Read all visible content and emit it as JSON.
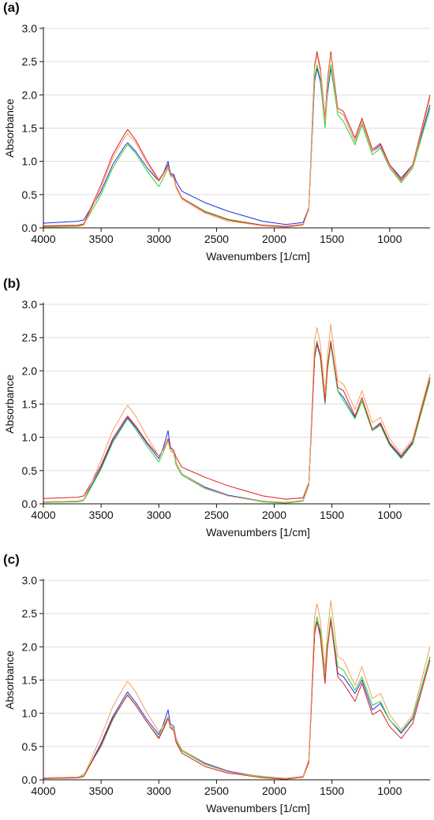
{
  "figure": {
    "panels": [
      "(a)",
      "(b)",
      "(c)"
    ]
  },
  "colors": {
    "blue": "#2030e0",
    "green": "#30d030",
    "red": "#e02020",
    "orange": "#f0a060",
    "grid": "#dddddd",
    "axis": "#111111"
  },
  "chart_data": [
    {
      "type": "line",
      "panel_label": "(a)",
      "xlabel": "Wavenumbers [1/cm]",
      "ylabel": "Absorbance",
      "xlim": [
        4000,
        650
      ],
      "ylim": [
        0.0,
        3.0
      ],
      "x_ticks": [
        4000,
        3500,
        3000,
        2500,
        2000,
        1500,
        1000
      ],
      "y_ticks": [
        "0.0",
        "0.5",
        "1.0",
        "1.5",
        "2.0",
        "2.5",
        "3.0"
      ],
      "grid": "horizontal",
      "x": [
        4000,
        3700,
        3650,
        3500,
        3400,
        3300,
        3270,
        3200,
        3100,
        3000,
        2960,
        2920,
        2900,
        2870,
        2850,
        2800,
        2600,
        2400,
        2300,
        2100,
        1900,
        1750,
        1700,
        1650,
        1630,
        1600,
        1560,
        1540,
        1510,
        1450,
        1400,
        1300,
        1240,
        1150,
        1080,
        1000,
        900,
        800,
        650
      ],
      "series": [
        {
          "color": "blue",
          "values": [
            0.07,
            0.1,
            0.12,
            0.55,
            0.95,
            1.22,
            1.28,
            1.15,
            0.9,
            0.7,
            0.82,
            1.0,
            0.82,
            0.8,
            0.7,
            0.55,
            0.38,
            0.25,
            0.2,
            0.1,
            0.05,
            0.08,
            0.3,
            2.2,
            2.4,
            2.2,
            1.55,
            2.0,
            2.4,
            1.75,
            1.7,
            1.3,
            1.6,
            1.15,
            1.25,
            0.95,
            0.75,
            0.95,
            1.85
          ]
        },
        {
          "color": "green",
          "values": [
            0.02,
            0.03,
            0.05,
            0.5,
            0.9,
            1.18,
            1.25,
            1.12,
            0.85,
            0.62,
            0.75,
            0.9,
            0.78,
            0.75,
            0.6,
            0.45,
            0.25,
            0.13,
            0.1,
            0.04,
            0.02,
            0.05,
            0.28,
            2.25,
            2.45,
            2.25,
            1.5,
            2.05,
            2.45,
            1.7,
            1.6,
            1.25,
            1.55,
            1.1,
            1.2,
            0.9,
            0.68,
            0.9,
            1.8
          ]
        },
        {
          "color": "red",
          "values": [
            0.03,
            0.04,
            0.06,
            0.65,
            1.1,
            1.4,
            1.48,
            1.32,
            1.0,
            0.72,
            0.82,
            0.95,
            0.8,
            0.78,
            0.62,
            0.45,
            0.24,
            0.12,
            0.09,
            0.04,
            0.02,
            0.05,
            0.3,
            2.45,
            2.65,
            2.4,
            1.65,
            2.2,
            2.65,
            1.8,
            1.75,
            1.35,
            1.65,
            1.18,
            1.27,
            0.95,
            0.72,
            0.95,
            2.0
          ]
        },
        {
          "color": "orange",
          "values": [
            0.01,
            0.02,
            0.04,
            0.6,
            1.05,
            1.35,
            1.42,
            1.28,
            0.96,
            0.7,
            0.8,
            0.93,
            0.78,
            0.76,
            0.6,
            0.43,
            0.22,
            0.1,
            0.08,
            0.03,
            0.01,
            0.04,
            0.28,
            2.4,
            2.6,
            2.35,
            1.6,
            2.15,
            2.6,
            1.75,
            1.7,
            1.3,
            1.6,
            1.15,
            1.22,
            0.92,
            0.7,
            0.92,
            1.95
          ]
        }
      ]
    },
    {
      "type": "line",
      "panel_label": "(b)",
      "xlabel": "Wavenumbers [1/cm]",
      "ylabel": "Absorbance",
      "xlim": [
        4000,
        650
      ],
      "ylim": [
        0.0,
        3.0
      ],
      "x_ticks": [
        4000,
        3500,
        3000,
        2500,
        2000,
        1500,
        1000
      ],
      "y_ticks": [
        "0.0",
        "0.5",
        "1.0",
        "1.5",
        "2.0",
        "2.5",
        "3.0"
      ],
      "grid": "horizontal",
      "x": [
        4000,
        3700,
        3650,
        3500,
        3400,
        3300,
        3270,
        3200,
        3100,
        3000,
        2960,
        2920,
        2900,
        2870,
        2850,
        2800,
        2600,
        2400,
        2300,
        2100,
        1900,
        1750,
        1700,
        1650,
        1630,
        1600,
        1560,
        1540,
        1510,
        1450,
        1400,
        1300,
        1240,
        1150,
        1080,
        1000,
        900,
        800,
        650
      ],
      "series": [
        {
          "color": "blue",
          "values": [
            0.03,
            0.04,
            0.06,
            0.55,
            0.95,
            1.22,
            1.3,
            1.15,
            0.9,
            0.68,
            0.85,
            1.1,
            0.85,
            0.8,
            0.62,
            0.45,
            0.25,
            0.13,
            0.1,
            0.04,
            0.02,
            0.05,
            0.3,
            2.2,
            2.4,
            2.2,
            1.5,
            2.0,
            2.4,
            1.7,
            1.6,
            1.3,
            1.55,
            1.1,
            1.2,
            0.9,
            0.7,
            0.92,
            1.85
          ]
        },
        {
          "color": "green",
          "values": [
            0.02,
            0.03,
            0.05,
            0.52,
            0.92,
            1.2,
            1.28,
            1.12,
            0.86,
            0.63,
            0.78,
            0.95,
            0.8,
            0.76,
            0.58,
            0.43,
            0.23,
            0.12,
            0.09,
            0.03,
            0.01,
            0.04,
            0.28,
            2.25,
            2.45,
            2.2,
            1.5,
            2.0,
            2.4,
            1.7,
            1.55,
            1.28,
            1.55,
            1.1,
            1.18,
            0.88,
            0.68,
            0.9,
            1.85
          ]
        },
        {
          "color": "red",
          "values": [
            0.08,
            0.1,
            0.12,
            0.58,
            0.98,
            1.25,
            1.32,
            1.17,
            0.92,
            0.72,
            0.82,
            0.98,
            0.84,
            0.8,
            0.7,
            0.55,
            0.4,
            0.27,
            0.22,
            0.12,
            0.07,
            0.09,
            0.32,
            2.2,
            2.42,
            2.25,
            1.55,
            2.05,
            2.45,
            1.75,
            1.7,
            1.32,
            1.6,
            1.12,
            1.22,
            0.92,
            0.72,
            0.94,
            1.9
          ]
        },
        {
          "color": "orange",
          "values": [
            0.03,
            0.04,
            0.06,
            0.65,
            1.1,
            1.4,
            1.48,
            1.32,
            1.0,
            0.72,
            0.82,
            0.95,
            0.8,
            0.78,
            0.62,
            0.45,
            0.24,
            0.12,
            0.09,
            0.04,
            0.02,
            0.05,
            0.3,
            2.45,
            2.65,
            2.4,
            1.65,
            2.2,
            2.7,
            1.85,
            1.8,
            1.42,
            1.7,
            1.22,
            1.3,
            0.98,
            0.75,
            0.98,
            1.95
          ]
        }
      ]
    },
    {
      "type": "line",
      "panel_label": "(c)",
      "xlabel": "Wavenumbers [1/cm]",
      "ylabel": "Absorbance",
      "xlim": [
        4000,
        650
      ],
      "ylim": [
        0.0,
        3.0
      ],
      "x_ticks": [
        4000,
        3500,
        3000,
        2500,
        2000,
        1500,
        1000
      ],
      "y_ticks": [
        "0.0",
        "0.5",
        "1.0",
        "1.5",
        "2.0",
        "2.5",
        "3.0"
      ],
      "grid": "horizontal",
      "x": [
        4000,
        3700,
        3650,
        3500,
        3400,
        3300,
        3270,
        3200,
        3100,
        3000,
        2960,
        2920,
        2900,
        2870,
        2850,
        2800,
        2600,
        2400,
        2300,
        2100,
        1900,
        1750,
        1700,
        1650,
        1630,
        1600,
        1560,
        1540,
        1510,
        1450,
        1400,
        1300,
        1240,
        1150,
        1080,
        1000,
        900,
        800,
        650
      ],
      "series": [
        {
          "color": "blue",
          "values": [
            0.02,
            0.03,
            0.05,
            0.55,
            0.95,
            1.24,
            1.32,
            1.16,
            0.9,
            0.68,
            0.84,
            1.05,
            0.84,
            0.8,
            0.62,
            0.45,
            0.25,
            0.13,
            0.1,
            0.04,
            0.02,
            0.05,
            0.3,
            2.2,
            2.38,
            2.2,
            1.5,
            2.0,
            2.4,
            1.6,
            1.55,
            1.3,
            1.5,
            1.05,
            1.15,
            0.9,
            0.7,
            0.92,
            1.85
          ]
        },
        {
          "color": "green",
          "values": [
            0.03,
            0.04,
            0.08,
            0.5,
            0.9,
            1.2,
            1.28,
            1.12,
            0.86,
            0.64,
            0.78,
            0.95,
            0.8,
            0.76,
            0.58,
            0.43,
            0.23,
            0.12,
            0.09,
            0.05,
            0.02,
            0.04,
            0.28,
            2.25,
            2.45,
            2.25,
            1.5,
            2.0,
            2.45,
            1.7,
            1.65,
            1.35,
            1.55,
            1.12,
            1.18,
            0.9,
            0.72,
            0.94,
            1.85
          ]
        },
        {
          "color": "red",
          "values": [
            0.02,
            0.03,
            0.05,
            0.52,
            0.92,
            1.2,
            1.27,
            1.12,
            0.86,
            0.62,
            0.76,
            0.92,
            0.78,
            0.74,
            0.56,
            0.4,
            0.2,
            0.1,
            0.08,
            0.03,
            0.01,
            0.04,
            0.26,
            2.2,
            2.38,
            2.15,
            1.45,
            1.95,
            2.4,
            1.55,
            1.45,
            1.18,
            1.45,
            0.98,
            1.05,
            0.8,
            0.62,
            0.85,
            1.8
          ]
        },
        {
          "color": "orange",
          "values": [
            0.03,
            0.04,
            0.06,
            0.65,
            1.1,
            1.4,
            1.48,
            1.32,
            1.0,
            0.72,
            0.82,
            0.95,
            0.8,
            0.78,
            0.62,
            0.45,
            0.24,
            0.12,
            0.09,
            0.04,
            0.02,
            0.05,
            0.3,
            2.45,
            2.65,
            2.4,
            1.65,
            2.2,
            2.7,
            1.85,
            1.8,
            1.42,
            1.7,
            1.22,
            1.3,
            0.98,
            0.75,
            0.98,
            2.0
          ]
        }
      ]
    }
  ]
}
